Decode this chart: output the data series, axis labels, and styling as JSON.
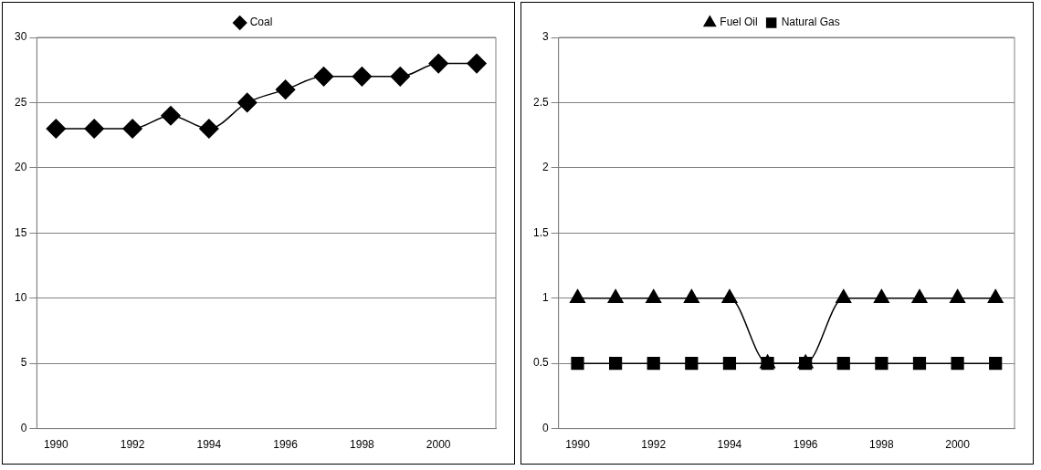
{
  "chart_data": [
    {
      "type": "line",
      "categories": [
        "1990",
        null,
        "1992",
        null,
        "1994",
        null,
        "1996",
        null,
        "1998",
        null,
        "2000",
        null
      ],
      "series": [
        {
          "name": "Coal",
          "color": "#000000",
          "marker": "diamond",
          "values": [
            23,
            23,
            23,
            24,
            23,
            25,
            26,
            27,
            27,
            27,
            28,
            28
          ]
        }
      ],
      "ylim": [
        0,
        30
      ],
      "yticks": [
        0,
        5,
        10,
        15,
        20,
        25,
        30
      ],
      "grid": "y",
      "legend": "top"
    },
    {
      "type": "line",
      "categories": [
        "1990",
        null,
        "1992",
        null,
        "1994",
        null,
        "1996",
        null,
        "1998",
        null,
        "2000",
        null
      ],
      "series": [
        {
          "name": "Fuel Oil",
          "color": "#000000",
          "marker": "triangle",
          "values": [
            1,
            1,
            1,
            1,
            1,
            0.5,
            0.5,
            1,
            1,
            1,
            1,
            1
          ]
        },
        {
          "name": "Natural Gas",
          "color": "#000000",
          "marker": "square",
          "values": [
            0.5,
            0.5,
            0.5,
            0.5,
            0.5,
            0.5,
            0.5,
            0.5,
            0.5,
            0.5,
            0.5,
            0.5
          ]
        }
      ],
      "ylim": [
        0,
        3
      ],
      "yticks": [
        0,
        0.5,
        1,
        1.5,
        2,
        2.5,
        3
      ],
      "grid": "y",
      "legend": "top"
    }
  ]
}
